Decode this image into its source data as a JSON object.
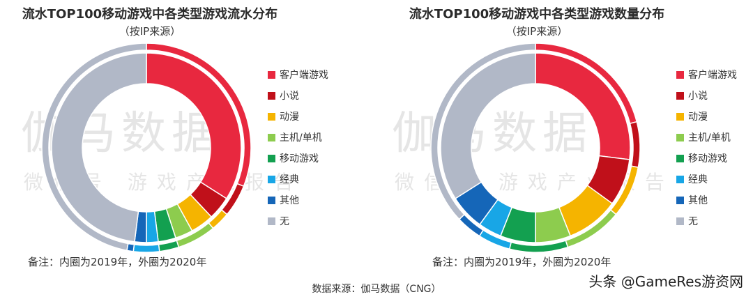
{
  "colors": {
    "客户端游戏": "#e8283f",
    "小说": "#c0101a",
    "动漫": "#f5b400",
    "主机/单机": "#8dcc4e",
    "移动游戏": "#13a050",
    "经典": "#18a6e6",
    "其他": "#1566b8",
    "无": "#b1b8c7"
  },
  "watermark": {
    "main": "伽马数据",
    "sub": "微信号  游戏产业报告"
  },
  "source": "数据来源：伽马数据（CNG）",
  "credit": "头条 @GameRes游资网",
  "chart_data": [
    {
      "type": "donut",
      "title": "流水TOP100移动游戏中各类型游戏流水分布",
      "subtitle": "（按IP来源）",
      "note": "备注：内圈为2019年，外圈为2020年",
      "legend_position": "right",
      "categories": [
        "客户端游戏",
        "小说",
        "动漫",
        "主机/单机",
        "移动游戏",
        "经典",
        "其他",
        "无"
      ],
      "series": [
        {
          "name": "内圈为2019年",
          "values": [
            34,
            4,
            4,
            3,
            3,
            2,
            2,
            48
          ]
        },
        {
          "name": "外圈为2020年",
          "values": [
            31,
            5,
            3,
            6,
            3,
            4,
            1,
            47
          ]
        }
      ]
    },
    {
      "type": "donut",
      "title": "流水TOP100移动游戏中各类型游戏数量分布",
      "subtitle": "（按IP来源）",
      "note": "备注：内圈为2019年，外圈为2020年",
      "legend_position": "right",
      "categories": [
        "客户端游戏",
        "小说",
        "动漫",
        "主机/单机",
        "移动游戏",
        "经典",
        "其他",
        "无"
      ],
      "series": [
        {
          "name": "内圈为2019年",
          "values": [
            27,
            8,
            9,
            6,
            6,
            4,
            6,
            34
          ]
        },
        {
          "name": "外圈为2020年",
          "values": [
            21,
            7,
            8,
            9,
            9,
            5,
            4,
            37
          ]
        }
      ]
    }
  ]
}
